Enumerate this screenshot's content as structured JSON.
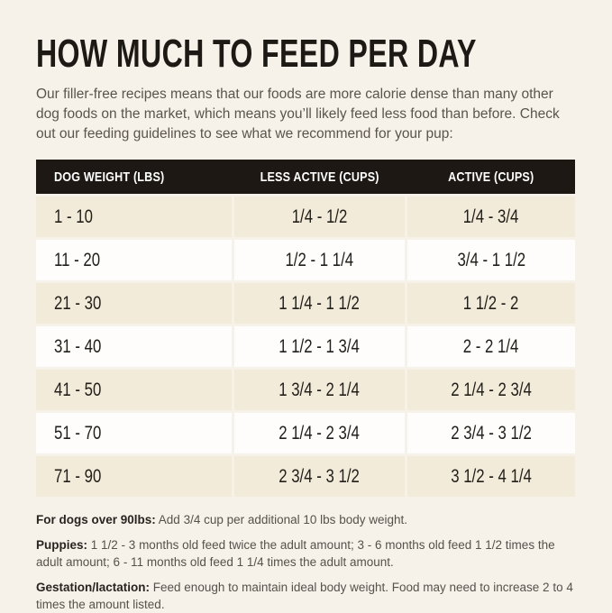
{
  "page": {
    "title": "HOW MUCH TO FEED PER DAY",
    "intro": "Our filler-free recipes means that our foods are more calorie dense than many other dog foods on the market, which means you’ll likely feed less food than before. Check out our feeding guidelines to see what we recommend for your pup:"
  },
  "table": {
    "columns": [
      "DOG WEIGHT (LBS)",
      "LESS ACTIVE (CUPS)",
      "ACTIVE (CUPS)"
    ],
    "rows": [
      {
        "weight": "1 - 10",
        "less_active": "1/4 - 1/2",
        "active": "1/4 - 3/4"
      },
      {
        "weight": "11 - 20",
        "less_active": "1/2 - 1 1/4",
        "active": "3/4 - 1 1/2"
      },
      {
        "weight": "21 - 30",
        "less_active": "1 1/4 - 1 1/2",
        "active": "1 1/2 - 2"
      },
      {
        "weight": "31 - 40",
        "less_active": "1 1/2 - 1 3/4",
        "active": "2 - 2 1/4"
      },
      {
        "weight": "41 - 50",
        "less_active": "1 3/4 - 2 1/4",
        "active": "2 1/4 - 2 3/4"
      },
      {
        "weight": "51 - 70",
        "less_active": "2 1/4 - 2 3/4",
        "active": "2 3/4 - 3 1/2"
      },
      {
        "weight": "71 - 90",
        "less_active": "2 3/4 - 3 1/2",
        "active": "3 1/2 - 4 1/4"
      }
    ]
  },
  "notes": [
    {
      "label": "For dogs over 90lbs:",
      "text": "Add 3/4 cup per additional 10 lbs body weight."
    },
    {
      "label": "Puppies:",
      "text": "1 1/2 - 3 months old feed twice the adult amount; 3 - 6 months old feed 1 1/2 times the adult amount; 6 - 11 months old feed 1 1/4 times the adult amount."
    },
    {
      "label": "Gestation/lactation:",
      "text": "Feed enough to maintain ideal body weight. Food may need to increase 2 to 4 times the amount listed."
    }
  ],
  "colors": {
    "background": "#f6f1e9",
    "header_bg": "#1d1813",
    "header_text": "#ffffff",
    "row_alt_bg": "#f3ebda",
    "row_bg": "#fefdfb",
    "title_color": "#1d1a16",
    "body_text": "#5a544d"
  }
}
